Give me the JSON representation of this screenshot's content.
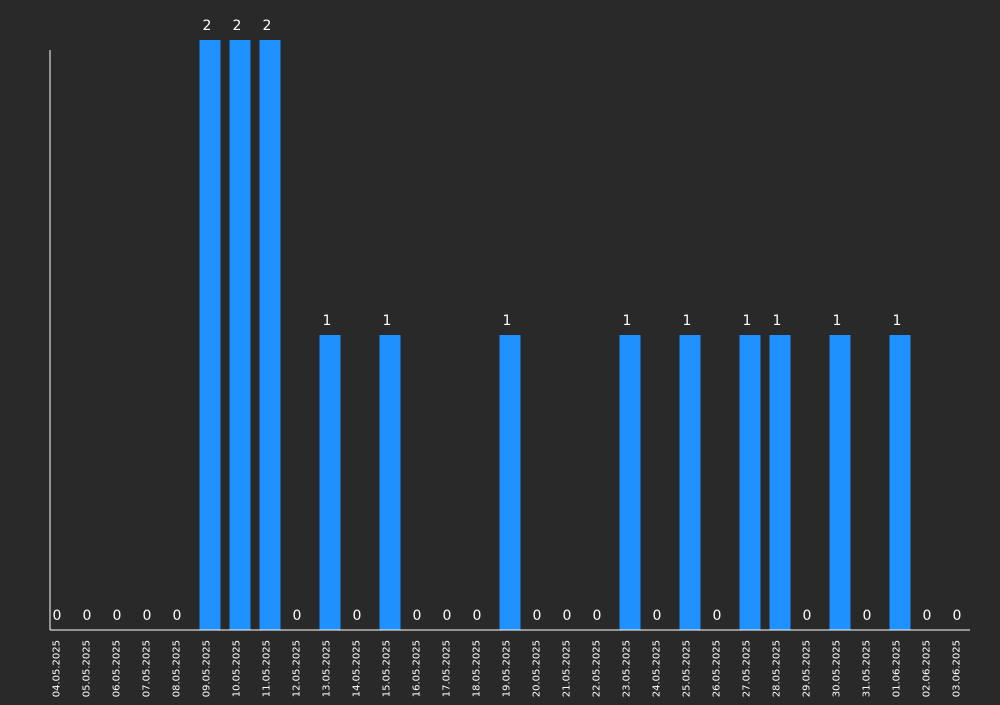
{
  "chart_data": {
    "type": "bar",
    "categories": [
      "04.05.2025",
      "05.05.2025",
      "06.05.2025",
      "07.05.2025",
      "08.05.2025",
      "09.05.2025",
      "10.05.2025",
      "11.05.2025",
      "12.05.2025",
      "13.05.2025",
      "14.05.2025",
      "15.05.2025",
      "16.05.2025",
      "17.05.2025",
      "18.05.2025",
      "19.05.2025",
      "20.05.2025",
      "21.05.2025",
      "22.05.2025",
      "23.05.2025",
      "24.05.2025",
      "25.05.2025",
      "26.05.2025",
      "27.05.2025",
      "28.05.2025",
      "29.05.2025",
      "30.05.2025",
      "31.05.2025",
      "01.06.2025",
      "02.06.2025",
      "03.06.2025"
    ],
    "values": [
      0,
      0,
      0,
      0,
      0,
      2,
      2,
      2,
      0,
      1,
      0,
      1,
      0,
      0,
      0,
      1,
      0,
      0,
      0,
      1,
      0,
      1,
      0,
      1,
      1,
      0,
      1,
      0,
      1,
      0,
      0
    ],
    "ylim": [
      0,
      2
    ],
    "grid": false,
    "legend": "none",
    "colors": {
      "background": "#292929",
      "bar": "#1e90ff",
      "axis": "#ffffff",
      "text": "#ffffff"
    }
  }
}
